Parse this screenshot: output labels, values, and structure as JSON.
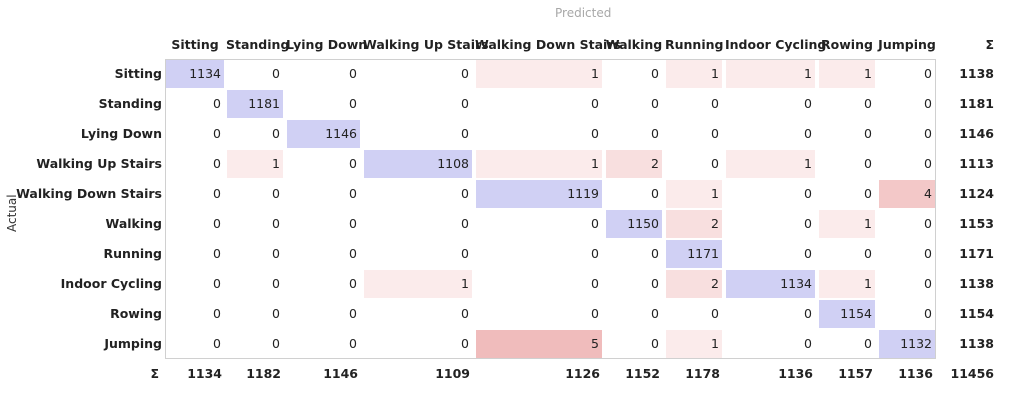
{
  "chart_data": {
    "type": "heatmap",
    "title": "",
    "xlabel": "Predicted",
    "ylabel": "Actual",
    "sum_symbol": "Σ",
    "columns": [
      "Sitting",
      "Standing",
      "Lying Down",
      "Walking Up Stairs",
      "Walking Down Stairs",
      "Walking",
      "Running",
      "Indoor Cycling",
      "Rowing",
      "Jumping"
    ],
    "rows": [
      "Sitting",
      "Standing",
      "Lying Down",
      "Walking Up Stairs",
      "Walking Down Stairs",
      "Walking",
      "Running",
      "Indoor Cycling",
      "Rowing",
      "Jumping"
    ],
    "matrix": [
      [
        1134,
        0,
        0,
        0,
        1,
        0,
        1,
        1,
        1,
        0
      ],
      [
        0,
        1181,
        0,
        0,
        0,
        0,
        0,
        0,
        0,
        0
      ],
      [
        0,
        0,
        1146,
        0,
        0,
        0,
        0,
        0,
        0,
        0
      ],
      [
        0,
        1,
        0,
        1108,
        1,
        2,
        0,
        1,
        0,
        0
      ],
      [
        0,
        0,
        0,
        0,
        1119,
        0,
        1,
        0,
        0,
        4
      ],
      [
        0,
        0,
        0,
        0,
        0,
        1150,
        2,
        0,
        1,
        0
      ],
      [
        0,
        0,
        0,
        0,
        0,
        0,
        1171,
        0,
        0,
        0
      ],
      [
        0,
        0,
        0,
        1,
        0,
        0,
        2,
        1134,
        1,
        0
      ],
      [
        0,
        0,
        0,
        0,
        0,
        0,
        0,
        0,
        1154,
        0
      ],
      [
        0,
        0,
        0,
        0,
        5,
        0,
        1,
        0,
        0,
        1132
      ]
    ],
    "row_sums": [
      1138,
      1181,
      1146,
      1113,
      1124,
      1153,
      1171,
      1138,
      1154,
      1138
    ],
    "col_sums": [
      1134,
      1182,
      1146,
      1109,
      1126,
      1152,
      1178,
      1136,
      1157,
      1136
    ],
    "total": 11456,
    "colors": {
      "diagonal": "#d0d0f4",
      "off_diagonal_max": "#f0bcbc",
      "border": "#d0d0d0"
    }
  }
}
